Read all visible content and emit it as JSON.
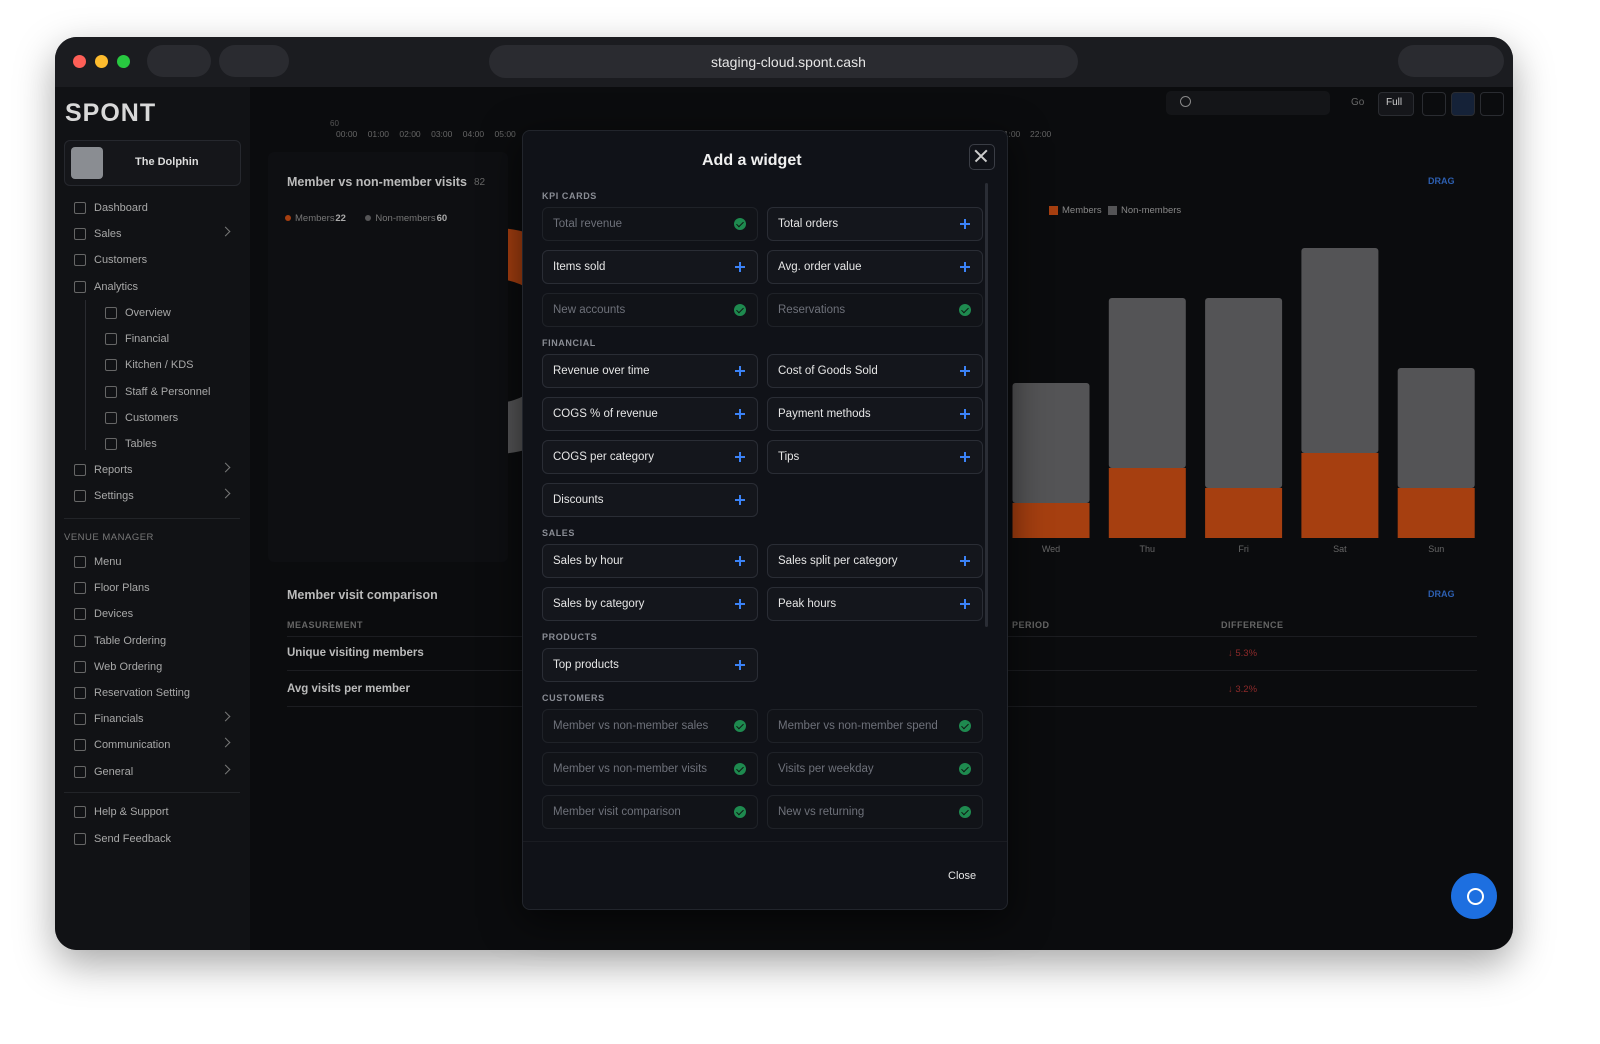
{
  "browser": {
    "url": "staging-cloud.spont.cash"
  },
  "sidebar": {
    "logo": "SPONT",
    "venue": "The Dolphin",
    "nav": [
      "Dashboard",
      "Sales",
      "Customers",
      "Analytics"
    ],
    "analytics_sub": [
      "Overview",
      "Financial",
      "Kitchen / KDS",
      "Staff & Personnel",
      "Customers",
      "Tables"
    ],
    "nav_after": [
      "Reports",
      "Settings"
    ],
    "section_title": "VENUE MANAGER",
    "venue_manager": [
      "Menu",
      "Floor Plans",
      "Devices",
      "Table Ordering",
      "Web Ordering",
      "Reservation Setting",
      "Financials",
      "Communication",
      "General"
    ],
    "footer": [
      "Help & Support",
      "Send Feedback"
    ]
  },
  "topbar": {
    "go": "Go",
    "full": "Full"
  },
  "background": {
    "time_axis": {
      "top_label": "60",
      "left": [
        "00:00",
        "01:00",
        "02:00",
        "03:00",
        "04:00",
        "05:00"
      ],
      "right": [
        "21:00",
        "22:00"
      ]
    },
    "donut_card": {
      "title": "Member vs non-member visits",
      "total": "82",
      "series": [
        {
          "name": "Members",
          "color": "#a63f10",
          "value": 22
        },
        {
          "name": "Non-members",
          "color": "#555557",
          "value": 60
        }
      ]
    },
    "bar_card": {
      "drag": "DRAG",
      "categories": [
        "Wed",
        "Thu",
        "Fri",
        "Sat",
        "Sun"
      ],
      "ylim": [
        0,
        60
      ],
      "series": [
        {
          "name": "Members",
          "color": "#a63f10",
          "values": [
            7,
            14,
            10,
            17,
            10
          ]
        },
        {
          "name": "Non-members",
          "color": "#545456",
          "values": [
            24,
            34,
            38,
            41,
            24
          ]
        }
      ]
    },
    "table_card": {
      "title": "Member visit comparison",
      "drag": "DRAG",
      "headers": [
        "MEASUREMENT",
        "PERIOD",
        "DIFFERENCE"
      ],
      "rows": [
        [
          "Unique visiting members",
          "↓ 5.3%"
        ],
        [
          "Avg visits per member",
          "↓ 3.2%"
        ]
      ]
    }
  },
  "modal": {
    "title": "Add a widget",
    "close": "Close",
    "sections": [
      {
        "title": "KPI CARDS",
        "items": [
          {
            "label": "Total revenue",
            "added": true
          },
          {
            "label": "Total orders",
            "added": false
          },
          {
            "label": "Items sold",
            "added": false
          },
          {
            "label": "Avg. order value",
            "added": false
          },
          {
            "label": "New accounts",
            "added": true
          },
          {
            "label": "Reservations",
            "added": true
          }
        ]
      },
      {
        "title": "FINANCIAL",
        "items": [
          {
            "label": "Revenue over time",
            "added": false
          },
          {
            "label": "Cost of Goods Sold",
            "added": false
          },
          {
            "label": "COGS % of revenue",
            "added": false
          },
          {
            "label": "Payment methods",
            "added": false
          },
          {
            "label": "COGS per category",
            "added": false
          },
          {
            "label": "Tips",
            "added": false
          },
          {
            "label": "Discounts",
            "added": false
          }
        ]
      },
      {
        "title": "SALES",
        "items": [
          {
            "label": "Sales by hour",
            "added": false
          },
          {
            "label": "Sales split per category",
            "added": false
          },
          {
            "label": "Sales by category",
            "added": false
          },
          {
            "label": "Peak hours",
            "added": false
          }
        ]
      },
      {
        "title": "PRODUCTS",
        "items": [
          {
            "label": "Top products",
            "added": false
          }
        ]
      },
      {
        "title": "CUSTOMERS",
        "items": [
          {
            "label": "Member vs non-member sales",
            "added": true
          },
          {
            "label": "Member vs non-member spend",
            "added": true
          },
          {
            "label": "Member vs non-member visits",
            "added": true
          },
          {
            "label": "Visits per weekday",
            "added": true
          },
          {
            "label": "Member visit comparison",
            "added": true
          },
          {
            "label": "New vs returning",
            "added": true
          }
        ]
      }
    ]
  }
}
